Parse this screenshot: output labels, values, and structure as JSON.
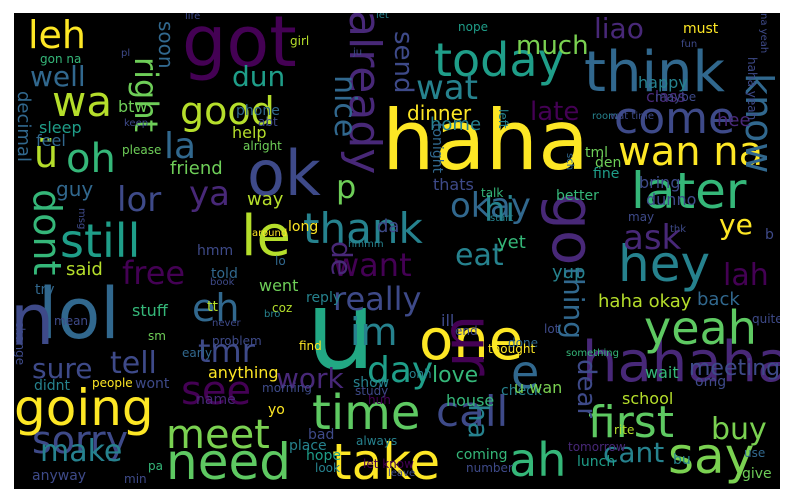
{
  "words": [
    {
      "t": "haha",
      "c": "#fde725"
    },
    {
      "t": "got",
      "c": "#440154"
    },
    {
      "t": "u",
      "c": "#22a884"
    },
    {
      "t": "lol",
      "c": "#31688e"
    },
    {
      "t": "one",
      "c": "#fde725"
    },
    {
      "t": "hahaha",
      "c": "#482878"
    },
    {
      "t": "ok",
      "c": "#3e4a89"
    },
    {
      "t": "think",
      "c": "#31688e"
    },
    {
      "t": "go",
      "c": "#482878"
    },
    {
      "t": "ur",
      "c": "#440154"
    },
    {
      "t": "time",
      "c": "#5ec962"
    },
    {
      "t": "going",
      "c": "#fde725"
    },
    {
      "t": "need",
      "c": "#5ec962"
    },
    {
      "t": "take",
      "c": "#fde725"
    },
    {
      "t": "say",
      "c": "#7ad151"
    },
    {
      "t": "hey",
      "c": "#26828e"
    },
    {
      "t": "later",
      "c": "#35b779"
    },
    {
      "t": "today",
      "c": "#1f9e89"
    },
    {
      "t": "yeah",
      "c": "#5ec962"
    },
    {
      "t": "already",
      "c": "#482878"
    },
    {
      "t": "come",
      "c": "#3e4a89"
    },
    {
      "t": "still",
      "c": "#1f9e89"
    },
    {
      "t": "wan na",
      "c": "#fde725"
    },
    {
      "t": "n",
      "c": "#3e4a89"
    },
    {
      "t": "first",
      "c": "#5ec962"
    },
    {
      "t": "call",
      "c": "#3e4a89"
    },
    {
      "t": "thank",
      "c": "#26828e"
    },
    {
      "t": "good",
      "c": "#b5de2b"
    },
    {
      "t": "ah",
      "c": "#35b779"
    },
    {
      "t": "im",
      "c": "#26828e"
    },
    {
      "t": "day",
      "c": "#1f9e89"
    },
    {
      "t": "meet",
      "c": "#7ad151"
    },
    {
      "t": "sorry",
      "c": "#3e4a89"
    },
    {
      "t": "know",
      "c": "#31688e"
    },
    {
      "t": "okay",
      "c": "#31688e"
    },
    {
      "t": "ya",
      "c": "#482878"
    },
    {
      "t": "leh",
      "c": "#fde725"
    },
    {
      "t": "wa",
      "c": "#b5de2b"
    },
    {
      "t": "dont",
      "c": "#35b779"
    },
    {
      "t": "lor",
      "c": "#3e4a89"
    },
    {
      "t": "ask",
      "c": "#482878"
    },
    {
      "t": "want",
      "c": "#440154"
    },
    {
      "t": "see",
      "c": "#440154"
    },
    {
      "t": "eh",
      "c": "#31688e"
    },
    {
      "t": "e",
      "c": "#31688e"
    },
    {
      "t": "tmr",
      "c": "#3e4a89"
    },
    {
      "t": "right",
      "c": "#6ece58"
    },
    {
      "t": "hi",
      "c": "#26828e"
    },
    {
      "t": "wat",
      "c": "#26828e"
    },
    {
      "t": "le",
      "c": "#b5de2b"
    },
    {
      "t": "ü",
      "c": "#b5de2b"
    },
    {
      "t": "oh",
      "c": "#35b779"
    },
    {
      "t": "la",
      "c": "#31688e"
    },
    {
      "t": "much",
      "c": "#7ad151"
    },
    {
      "t": "liao",
      "c": "#482878"
    },
    {
      "t": "nice",
      "c": "#31688e"
    },
    {
      "t": "send",
      "c": "#3e4a89"
    },
    {
      "t": "late",
      "c": "#440154"
    },
    {
      "t": "well",
      "c": "#31688e"
    },
    {
      "t": "dun",
      "c": "#1f9e89"
    },
    {
      "t": "make",
      "c": "#26828e"
    },
    {
      "t": "buy",
      "c": "#7ad151"
    },
    {
      "t": "cant",
      "c": "#26828e"
    },
    {
      "t": "work",
      "c": "#482878"
    },
    {
      "t": "tell",
      "c": "#3e4a89"
    },
    {
      "t": "sure",
      "c": "#3e4a89"
    },
    {
      "t": "free",
      "c": "#440154"
    },
    {
      "t": "really",
      "c": "#3e4a89"
    },
    {
      "t": "eat",
      "c": "#26828e"
    },
    {
      "t": "lah",
      "c": "#440154"
    },
    {
      "t": "thing",
      "c": "#31688e"
    },
    {
      "t": "dear",
      "c": "#3e4a89"
    },
    {
      "t": "ha",
      "c": "#26828e"
    },
    {
      "t": "ye",
      "c": "#fde725"
    },
    {
      "t": "de",
      "c": "#482878"
    },
    {
      "t": "p",
      "c": "#6ece58"
    },
    {
      "t": "meeting",
      "c": "#3e4a89"
    },
    {
      "t": "love",
      "c": "#35b779"
    },
    {
      "t": "haha okay",
      "c": "#b5de2b"
    },
    {
      "t": "dinner",
      "c": "#fde725"
    },
    {
      "t": "home",
      "c": "#26828e"
    },
    {
      "t": "friend",
      "c": "#6ece58"
    },
    {
      "t": "help",
      "c": "#b5de2b"
    },
    {
      "t": "way",
      "c": "#b5de2b"
    },
    {
      "t": "guy",
      "c": "#31688e"
    },
    {
      "t": "said",
      "c": "#b5de2b"
    },
    {
      "t": "back",
      "c": "#31688e"
    },
    {
      "t": "yup",
      "c": "#26828e"
    },
    {
      "t": "yet",
      "c": "#35b779"
    },
    {
      "t": "da",
      "c": "#3e4a89"
    },
    {
      "t": "thats",
      "c": "#3e4a89"
    },
    {
      "t": "long",
      "c": "#fde725"
    },
    {
      "t": "hmm",
      "c": "#3e4a89"
    },
    {
      "t": "told",
      "c": "#31688e"
    },
    {
      "t": "went",
      "c": "#6ece58"
    },
    {
      "t": "reply",
      "c": "#26828e"
    },
    {
      "t": "anything",
      "c": "#fde725"
    },
    {
      "t": "stuff",
      "c": "#35b779"
    },
    {
      "t": "try",
      "c": "#31688e"
    },
    {
      "t": "soon",
      "c": "#31688e"
    },
    {
      "t": "sleep",
      "c": "#1f9e89"
    },
    {
      "t": "btw",
      "c": "#6ece58"
    },
    {
      "t": "decimal",
      "c": "#31688e"
    },
    {
      "t": "phone",
      "c": "#31688e"
    },
    {
      "t": "feel",
      "c": "#31688e"
    },
    {
      "t": "please",
      "c": "#6ece58"
    },
    {
      "t": "happy",
      "c": "#26828e"
    },
    {
      "t": "class",
      "c": "#482878"
    },
    {
      "t": "hee",
      "c": "#482878"
    },
    {
      "t": "must",
      "c": "#fde725"
    },
    {
      "t": "nope",
      "c": "#1f9e89"
    },
    {
      "t": "tonight",
      "c": "#31688e"
    },
    {
      "t": "tml",
      "c": "#6ece58"
    },
    {
      "t": "den",
      "c": "#6ece58"
    },
    {
      "t": "fine",
      "c": "#1f9e89"
    },
    {
      "t": "bring",
      "c": "#3e4a89"
    },
    {
      "t": "dunno",
      "c": "#3e4a89"
    },
    {
      "t": "better",
      "c": "#35b779"
    },
    {
      "t": "talk",
      "c": "#35b779"
    },
    {
      "t": "school",
      "c": "#b5de2b"
    },
    {
      "t": "wait",
      "c": "#35b779"
    },
    {
      "t": "omg",
      "c": "#3e4a89"
    },
    {
      "t": "check",
      "c": "#26828e"
    },
    {
      "t": "house",
      "c": "#35b779"
    },
    {
      "t": "bad",
      "c": "#3e4a89"
    },
    {
      "t": "place",
      "c": "#26828e"
    },
    {
      "t": "always",
      "c": "#26828e"
    },
    {
      "t": "hope",
      "c": "#1f9e89"
    },
    {
      "t": "look",
      "c": "#26828e"
    },
    {
      "t": "coming",
      "c": "#35b779"
    },
    {
      "t": "number",
      "c": "#3e4a89"
    },
    {
      "t": "lunch",
      "c": "#1f9e89"
    },
    {
      "t": "tomorrow",
      "c": "#482878"
    },
    {
      "t": "rite",
      "c": "#b5de2b"
    },
    {
      "t": "bu",
      "c": "#26828e"
    },
    {
      "t": "give",
      "c": "#6ece58"
    },
    {
      "t": "use",
      "c": "#31688e"
    },
    {
      "t": "u wan",
      "c": "#7ad151"
    },
    {
      "t": "ill",
      "c": "#3e4a89"
    },
    {
      "t": "lot",
      "c": "#3e4a89"
    },
    {
      "t": "end",
      "c": "#3e4a89"
    },
    {
      "t": "done",
      "c": "#31688e"
    },
    {
      "t": "thought",
      "c": "#fde725"
    },
    {
      "t": "something",
      "c": "#35b779"
    },
    {
      "t": "ohh",
      "c": "#26828e"
    },
    {
      "t": "show",
      "c": "#26828e"
    },
    {
      "t": "study",
      "c": "#3e4a89"
    },
    {
      "t": "huh",
      "c": "#440154"
    },
    {
      "t": "yo",
      "c": "#fde725"
    },
    {
      "t": "name",
      "c": "#482878"
    },
    {
      "t": "morning",
      "c": "#3e4a89"
    },
    {
      "t": "problem",
      "c": "#3e4a89"
    },
    {
      "t": "find",
      "c": "#fde725"
    },
    {
      "t": "leave",
      "c": "#3e4a89"
    },
    {
      "t": "let know",
      "c": "#440154"
    },
    {
      "t": "wont",
      "c": "#3e4a89"
    },
    {
      "t": "people",
      "c": "#fde725"
    },
    {
      "t": "didnt",
      "c": "#26828e"
    },
    {
      "t": "anyway",
      "c": "#3e4a89"
    },
    {
      "t": "min",
      "c": "#3e4a89"
    },
    {
      "t": "pa",
      "c": "#35b779"
    },
    {
      "t": "mean",
      "c": "#3e4a89"
    },
    {
      "t": "sm",
      "c": "#6ece58"
    },
    {
      "t": "early",
      "c": "#31688e"
    },
    {
      "t": "never",
      "c": "#3e4a89"
    },
    {
      "t": "change",
      "c": "#3e4a89"
    },
    {
      "t": "tt",
      "c": "#b5de2b"
    },
    {
      "t": "coz",
      "c": "#b5de2b"
    },
    {
      "t": "bro",
      "c": "#26828e"
    },
    {
      "t": "book",
      "c": "#3e4a89"
    },
    {
      "t": "lo",
      "c": "#31688e"
    },
    {
      "t": "hmmm",
      "c": "#26828e"
    },
    {
      "t": "around",
      "c": "#fde725"
    },
    {
      "t": "abt",
      "c": "#3e4a89"
    },
    {
      "t": "alright",
      "c": "#6ece58"
    },
    {
      "t": "left",
      "c": "#26828e"
    },
    {
      "t": "start",
      "c": "#26828e"
    },
    {
      "t": "may",
      "c": "#3e4a89"
    },
    {
      "t": "thk",
      "c": "#3e4a89"
    },
    {
      "t": "b",
      "c": "#3e4a89"
    },
    {
      "t": "quite",
      "c": "#3e4a89"
    },
    {
      "t": "maybe",
      "c": "#3e4a89"
    },
    {
      "t": "room",
      "c": "#26828e"
    },
    {
      "t": "wat time",
      "c": "#3e4a89"
    },
    {
      "t": "life",
      "c": "#3e4a89"
    },
    {
      "t": "let",
      "c": "#26828e"
    },
    {
      "t": "girl",
      "c": "#b5de2b"
    },
    {
      "t": "ju",
      "c": "#3e4a89"
    },
    {
      "t": "gon na",
      "c": "#35b779"
    },
    {
      "t": "pl",
      "c": "#3e4a89"
    },
    {
      "t": "keep",
      "c": "#3e4a89"
    },
    {
      "t": "msg",
      "c": "#3e4a89"
    },
    {
      "t": "fun",
      "c": "#3e4a89"
    },
    {
      "t": "na yeah",
      "c": "#3e4a89"
    },
    {
      "t": "haha yeah",
      "c": "#3e4a89"
    },
    {
      "t": "sch",
      "c": "#31688e"
    }
  ]
}
